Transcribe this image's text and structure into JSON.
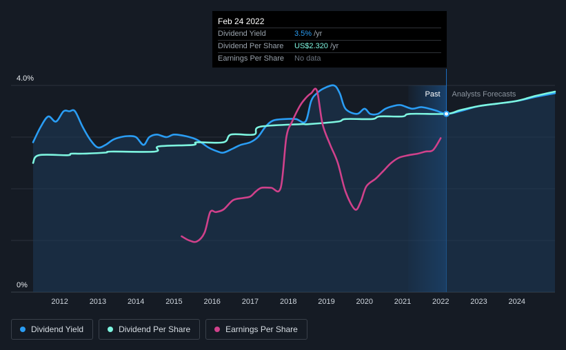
{
  "tooltip": {
    "date": "Feb 24 2022",
    "rows": [
      {
        "name": "Dividend Yield",
        "value": "3.5%",
        "unit": "/yr",
        "color": "#2a9df4"
      },
      {
        "name": "Dividend Per Share",
        "value": "US$2.320",
        "unit": "/yr",
        "color": "#7ef5e0"
      },
      {
        "name": "Earnings Per Share",
        "value": "No data",
        "unit": "",
        "color": "#6b7480"
      }
    ]
  },
  "regions": {
    "past": "Past",
    "forecast": "Analysts Forecasts"
  },
  "legend": [
    {
      "label": "Dividend Yield",
      "color": "#2a9df4"
    },
    {
      "label": "Dividend Per Share",
      "color": "#7ef5e0"
    },
    {
      "label": "Earnings Per Share",
      "color": "#d0418b"
    }
  ],
  "chart_data": {
    "type": "line",
    "y_ticks": [
      "4.0%",
      "0%"
    ],
    "ylim": [
      0,
      4.0
    ],
    "xlim": [
      2011.3,
      2025.0
    ],
    "x_ticks": [
      "2012",
      "2013",
      "2014",
      "2015",
      "2016",
      "2017",
      "2018",
      "2019",
      "2020",
      "2021",
      "2022",
      "2023",
      "2024"
    ],
    "past_end": 2022.15,
    "past_shade_start": 2021.15,
    "grid": true,
    "legend_position": "bottom-left",
    "series": [
      {
        "name": "Dividend Yield",
        "color": "#2a9df4",
        "area": true,
        "x": [
          2011.3,
          2011.5,
          2011.7,
          2011.9,
          2012.1,
          2012.25,
          2012.4,
          2012.6,
          2012.8,
          2013.0,
          2013.2,
          2013.4,
          2013.6,
          2013.8,
          2014.0,
          2014.2,
          2014.35,
          2014.55,
          2014.8,
          2015.0,
          2015.3,
          2015.6,
          2015.9,
          2016.15,
          2016.3,
          2016.55,
          2016.75,
          2017.0,
          2017.2,
          2017.4,
          2017.6,
          2017.9,
          2018.2,
          2018.45,
          2018.6,
          2018.75,
          2018.95,
          2019.2,
          2019.35,
          2019.5,
          2019.8,
          2020.0,
          2020.15,
          2020.35,
          2020.55,
          2020.75,
          2020.95,
          2021.25,
          2021.5,
          2021.85,
          2022.15,
          2022.5,
          2023.0,
          2023.5,
          2024.0,
          2024.5,
          2025.0
        ],
        "y": [
          2.9,
          3.2,
          3.4,
          3.3,
          3.5,
          3.5,
          3.5,
          3.2,
          2.95,
          2.8,
          2.85,
          2.95,
          3.0,
          3.02,
          3.0,
          2.85,
          3.0,
          3.05,
          3.0,
          3.05,
          3.02,
          2.95,
          2.8,
          2.72,
          2.7,
          2.78,
          2.85,
          2.9,
          3.0,
          3.2,
          3.32,
          3.35,
          3.35,
          3.3,
          3.7,
          3.85,
          3.95,
          4.0,
          3.85,
          3.55,
          3.45,
          3.55,
          3.45,
          3.45,
          3.55,
          3.6,
          3.62,
          3.55,
          3.58,
          3.52,
          3.45,
          3.5,
          3.6,
          3.65,
          3.7,
          3.78,
          3.85
        ]
      },
      {
        "name": "Dividend Per Share",
        "color": "#7ef5e0",
        "area": false,
        "x": [
          2011.3,
          2011.45,
          2012.2,
          2012.3,
          2012.6,
          2013.2,
          2013.35,
          2014.5,
          2014.6,
          2015.5,
          2015.6,
          2016.3,
          2016.5,
          2017.1,
          2017.25,
          2018.3,
          2018.5,
          2019.3,
          2019.5,
          2020.2,
          2020.4,
          2021.0,
          2021.2,
          2022.15,
          2022.5,
          2023.0,
          2023.5,
          2024.0,
          2024.5,
          2025.0
        ],
        "y": [
          2.5,
          2.65,
          2.65,
          2.68,
          2.68,
          2.7,
          2.72,
          2.72,
          2.82,
          2.85,
          2.9,
          2.9,
          3.05,
          3.05,
          3.2,
          3.25,
          3.25,
          3.3,
          3.35,
          3.35,
          3.4,
          3.4,
          3.45,
          3.45,
          3.52,
          3.6,
          3.65,
          3.7,
          3.8,
          3.88
        ]
      },
      {
        "name": "Earnings Per Share",
        "color": "#d0418b",
        "area": false,
        "x": [
          2015.2,
          2015.4,
          2015.6,
          2015.8,
          2015.95,
          2016.1,
          2016.3,
          2016.55,
          2016.8,
          2017.0,
          2017.15,
          2017.3,
          2017.55,
          2017.8,
          2017.95,
          2018.1,
          2018.3,
          2018.45,
          2018.6,
          2018.75,
          2018.9,
          2019.1,
          2019.3,
          2019.5,
          2019.75,
          2019.9,
          2020.05,
          2020.3,
          2020.5,
          2020.7,
          2020.9,
          2021.15,
          2021.4,
          2021.6,
          2021.8,
          2022.0
        ],
        "y": [
          1.08,
          1.0,
          0.98,
          1.15,
          1.55,
          1.55,
          1.6,
          1.78,
          1.82,
          1.85,
          1.95,
          2.02,
          2.02,
          2.02,
          3.0,
          3.3,
          3.6,
          3.75,
          3.85,
          3.9,
          3.25,
          2.85,
          2.5,
          1.95,
          1.6,
          1.75,
          2.05,
          2.2,
          2.35,
          2.5,
          2.6,
          2.65,
          2.68,
          2.72,
          2.75,
          2.98
        ]
      }
    ]
  }
}
